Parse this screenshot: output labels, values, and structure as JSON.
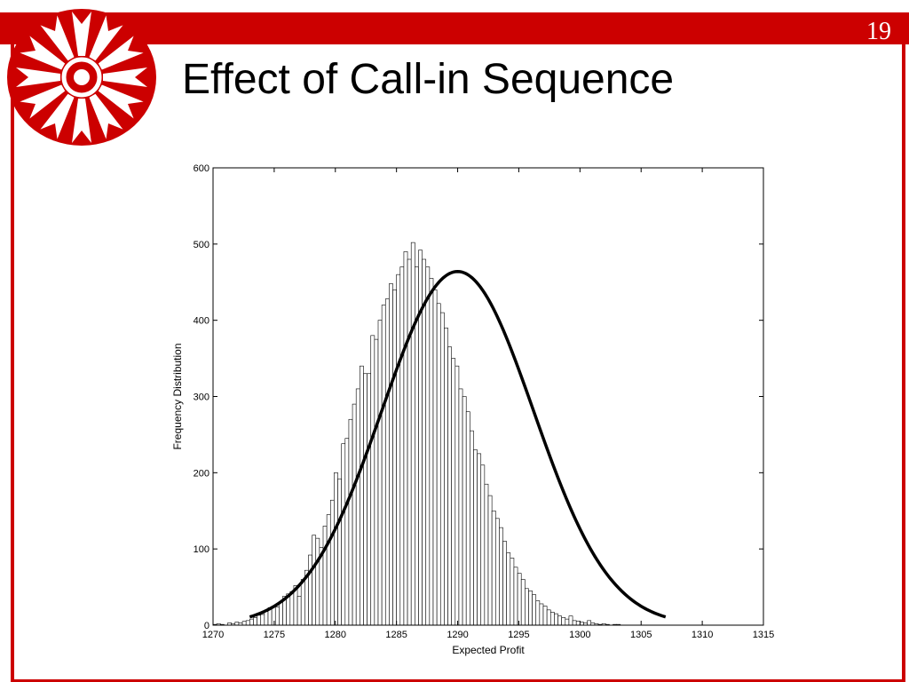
{
  "slide": {
    "title": "Effect of Call-in Sequence",
    "number": "19",
    "accent_color": "#cc0000"
  },
  "logo": {
    "icon": "starburst-wheel-logo",
    "color": "#cc0000"
  },
  "chart_data": {
    "type": "bar",
    "overlay": "line",
    "title": "",
    "xlabel": "Expected Profit",
    "ylabel": "Frequency Distribution",
    "xlim": [
      1270,
      1315
    ],
    "ylim": [
      0,
      600
    ],
    "xticks": [
      1270,
      1275,
      1280,
      1285,
      1290,
      1295,
      1300,
      1305,
      1310,
      1315
    ],
    "yticks": [
      0,
      100,
      200,
      300,
      400,
      500,
      600
    ],
    "grid": false,
    "legend": "none",
    "bin_width": 0.3,
    "histogram": {
      "x_start": 1270.0,
      "counts": [
        1,
        2,
        1,
        0,
        3,
        2,
        4,
        3,
        5,
        6,
        8,
        10,
        13,
        14,
        18,
        23,
        25,
        24,
        30,
        38,
        41,
        44,
        52,
        38,
        60,
        72,
        92,
        118,
        114,
        102,
        130,
        145,
        164,
        200,
        192,
        238,
        245,
        270,
        290,
        310,
        340,
        330,
        330,
        380,
        375,
        400,
        420,
        428,
        448,
        440,
        460,
        470,
        490,
        480,
        502,
        470,
        492,
        480,
        470,
        455,
        440,
        422,
        410,
        390,
        365,
        350,
        340,
        310,
        300,
        280,
        255,
        230,
        225,
        210,
        185,
        170,
        150,
        140,
        128,
        110,
        95,
        88,
        76,
        68,
        60,
        48,
        45,
        40,
        32,
        28,
        25,
        20,
        17,
        15,
        12,
        10,
        8,
        12,
        6,
        5,
        4,
        3,
        6,
        3,
        2,
        1,
        2,
        1,
        0,
        1,
        1
      ],
      "color": "#ffffff",
      "edge_color": "#000000"
    },
    "fit": {
      "type": "normal",
      "mean": 1290,
      "peak": 464,
      "sd": 6.2,
      "x_range": [
        1273,
        1307
      ],
      "color": "#000000"
    }
  }
}
